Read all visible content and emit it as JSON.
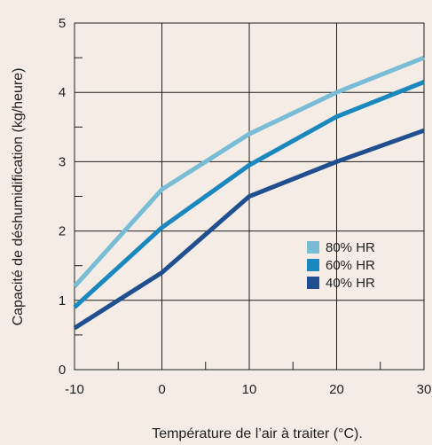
{
  "chart_data": {
    "type": "line",
    "xlabel": "Température de l’air à traiter (°C).",
    "ylabel": "Capacité de déshumidification (kg/heure)",
    "xlim": [
      -10,
      30
    ],
    "ylim": [
      0,
      5
    ],
    "x_ticks": [
      -10,
      0,
      10,
      20,
      30
    ],
    "y_ticks": [
      0,
      1,
      2,
      3,
      4,
      5
    ],
    "x_tick_labels": [
      "-10",
      "0",
      "10",
      "20",
      "30"
    ],
    "y_tick_labels": [
      "0",
      "1",
      "2",
      "3",
      "4",
      "5"
    ],
    "grid": true,
    "legend_position": "lower-right",
    "series": [
      {
        "name": "80% HR",
        "color": "#78bcd6",
        "x": [
          -10,
          0,
          10,
          20,
          30
        ],
        "y": [
          1.2,
          2.6,
          3.4,
          4.0,
          4.5
        ]
      },
      {
        "name": "60% HR",
        "color": "#1a88bf",
        "x": [
          -10,
          0,
          10,
          20,
          30
        ],
        "y": [
          0.9,
          2.05,
          2.95,
          3.65,
          4.15
        ]
      },
      {
        "name": "40% HR",
        "color": "#1f4f8f",
        "x": [
          -10,
          0,
          10,
          20,
          30
        ],
        "y": [
          0.6,
          1.4,
          2.5,
          3.0,
          3.45
        ]
      }
    ]
  },
  "colors": {
    "background": "#f5ede5",
    "grid": "#1e1e1e"
  }
}
